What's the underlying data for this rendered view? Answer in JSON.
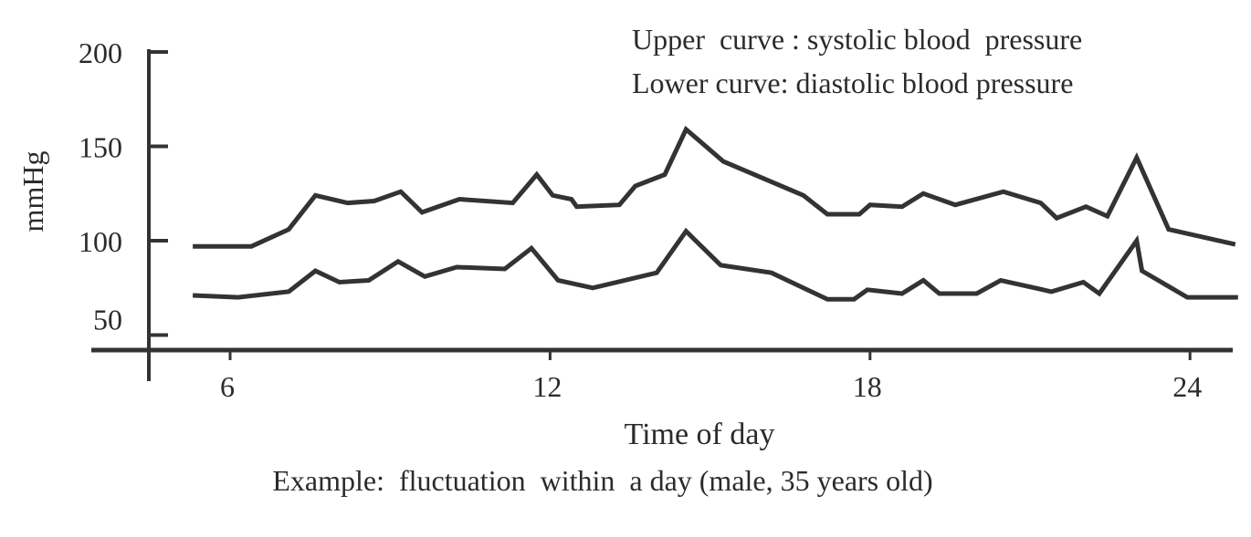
{
  "chart_data": {
    "type": "line",
    "title": "",
    "xlabel": "Time of day",
    "ylabel": "mmHg",
    "caption": "Example:  fluctuation  within  a day (male, 35 years old)",
    "xlim": [
      4.8,
      25
    ],
    "ylim": [
      40,
      200
    ],
    "xticks": [
      6,
      12,
      18,
      24
    ],
    "yticks": [
      50,
      100,
      150,
      200
    ],
    "grid": false,
    "legend": {
      "placement": "top-right",
      "entries": [
        "Upper  curve : systolic blood  pressure",
        "Lower curve: diastolic blood pressure"
      ]
    },
    "series": [
      {
        "name": "systolic",
        "color": "#333333",
        "x": [
          5.3,
          6.4,
          7.1,
          7.6,
          8.2,
          8.7,
          9.2,
          9.6,
          10.3,
          11.3,
          11.75,
          12.05,
          12.4,
          12.5,
          13.3,
          13.6,
          14.15,
          14.55,
          15.25,
          16.75,
          17.2,
          17.8,
          18.0,
          18.6,
          19.0,
          19.6,
          20.5,
          21.2,
          21.5,
          22.05,
          22.45,
          23.0,
          23.6,
          24.85
        ],
        "y": [
          97,
          97,
          106,
          124,
          120,
          121,
          126,
          115,
          122,
          120,
          135,
          124,
          122,
          118,
          119,
          129,
          135,
          159,
          142,
          124,
          114,
          114,
          119,
          118,
          125,
          119,
          126,
          120,
          112,
          118,
          113,
          144,
          106,
          98
        ]
      },
      {
        "name": "diastolic",
        "color": "#333333",
        "x": [
          5.3,
          6.15,
          7.1,
          7.6,
          8.05,
          8.6,
          9.15,
          9.65,
          10.25,
          11.15,
          11.65,
          12.15,
          12.8,
          14.0,
          14.55,
          15.2,
          16.15,
          17.2,
          17.7,
          17.95,
          18.6,
          19.0,
          19.3,
          20.0,
          20.45,
          21.4,
          22.0,
          22.3,
          23.0,
          23.1,
          23.95,
          24.9
        ],
        "y": [
          71,
          70,
          73,
          84,
          78,
          79,
          89,
          81,
          86,
          85,
          96,
          79,
          75,
          83,
          105,
          87,
          83,
          69,
          69,
          74,
          72,
          79,
          72,
          72,
          79,
          73,
          78,
          72,
          100,
          84,
          70,
          70
        ]
      }
    ]
  }
}
